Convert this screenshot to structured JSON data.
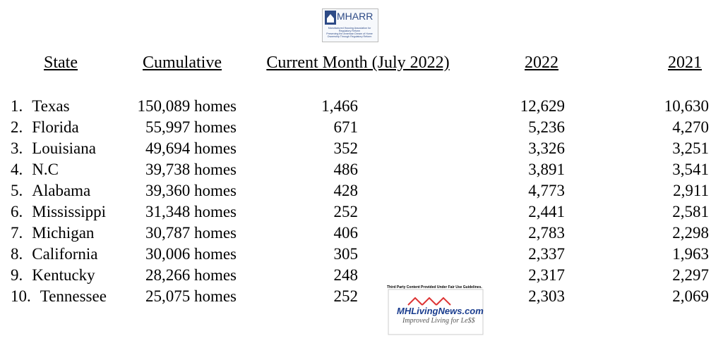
{
  "logo": {
    "name": "MHARR",
    "organization": "Manufactured Housing Association for Regulatory Reform",
    "tagline": "Preserving the American Dream of Home Ownership Through Regulatory Reform"
  },
  "table": {
    "headers": [
      "State",
      "Cumulative",
      "Current Month (July 2022)",
      "2022",
      "2021"
    ],
    "rows": [
      [
        "1.",
        "Texas",
        "150,089 homes",
        "1,466",
        "12,629",
        "10,630"
      ],
      [
        "2.",
        "Florida",
        "55,997 homes",
        "671",
        "5,236",
        "4,270"
      ],
      [
        "3.",
        "Louisiana",
        "49,694 homes",
        "352",
        "3,326",
        "3,251"
      ],
      [
        "4.",
        "N.C",
        "39,738 homes",
        "486",
        "3,891",
        "3,541"
      ],
      [
        "5.",
        "Alabama",
        "39,360 homes",
        "428",
        "4,773",
        "2,911"
      ],
      [
        "6.",
        "Mississippi",
        "31,348 homes",
        "252",
        "2,441",
        "2,581"
      ],
      [
        "7.",
        "Michigan",
        "30,787 homes",
        "406",
        "2,783",
        "2,298"
      ],
      [
        "8.",
        "California",
        "30,006 homes",
        "305",
        "2,337",
        "1,963"
      ],
      [
        "9.",
        "Kentucky",
        "28,266 homes",
        "248",
        "2,317",
        "2,297"
      ],
      [
        "10.",
        "Tennessee",
        "25,075 homes",
        "252",
        "2,303",
        "2,069"
      ]
    ]
  },
  "watermark": {
    "note": "Third Party Content Provided Under Fair Use Guidelines.",
    "site": "MHLivingNews.com",
    "tagline": "Improved Living for Le$$"
  }
}
